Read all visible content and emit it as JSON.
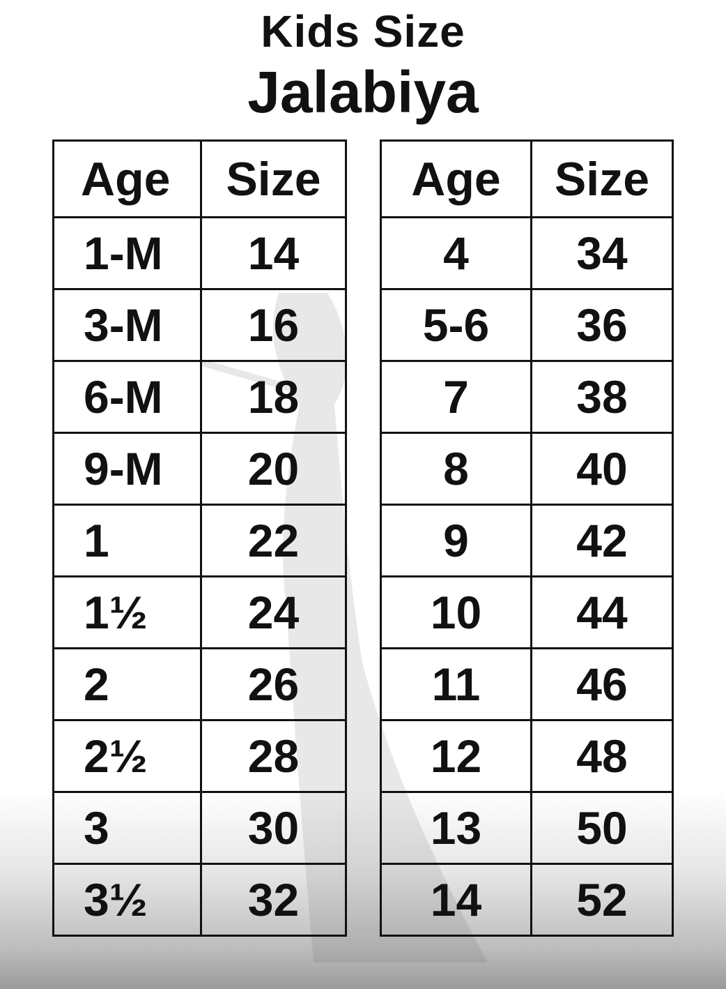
{
  "title": "Kids Size",
  "subtitle": "Jalabiya",
  "headers": {
    "age": "Age",
    "size": "Size"
  },
  "left_table": [
    {
      "age": "1-M",
      "size": "14"
    },
    {
      "age": "3-M",
      "size": "16"
    },
    {
      "age": "6-M",
      "size": "18"
    },
    {
      "age": "9-M",
      "size": "20"
    },
    {
      "age": "1",
      "size": "22"
    },
    {
      "age": "1½",
      "size": "24"
    },
    {
      "age": "2",
      "size": "26"
    },
    {
      "age": "2½",
      "size": "28"
    },
    {
      "age": "3",
      "size": "30"
    },
    {
      "age": "3½",
      "size": "32"
    }
  ],
  "right_table": [
    {
      "age": "4",
      "size": "34"
    },
    {
      "age": "5-6",
      "size": "36"
    },
    {
      "age": "7",
      "size": "38"
    },
    {
      "age": "8",
      "size": "40"
    },
    {
      "age": "9",
      "size": "42"
    },
    {
      "age": "10",
      "size": "44"
    },
    {
      "age": "11",
      "size": "46"
    },
    {
      "age": "12",
      "size": "48"
    },
    {
      "age": "13",
      "size": "50"
    },
    {
      "age": "14",
      "size": "52"
    }
  ]
}
